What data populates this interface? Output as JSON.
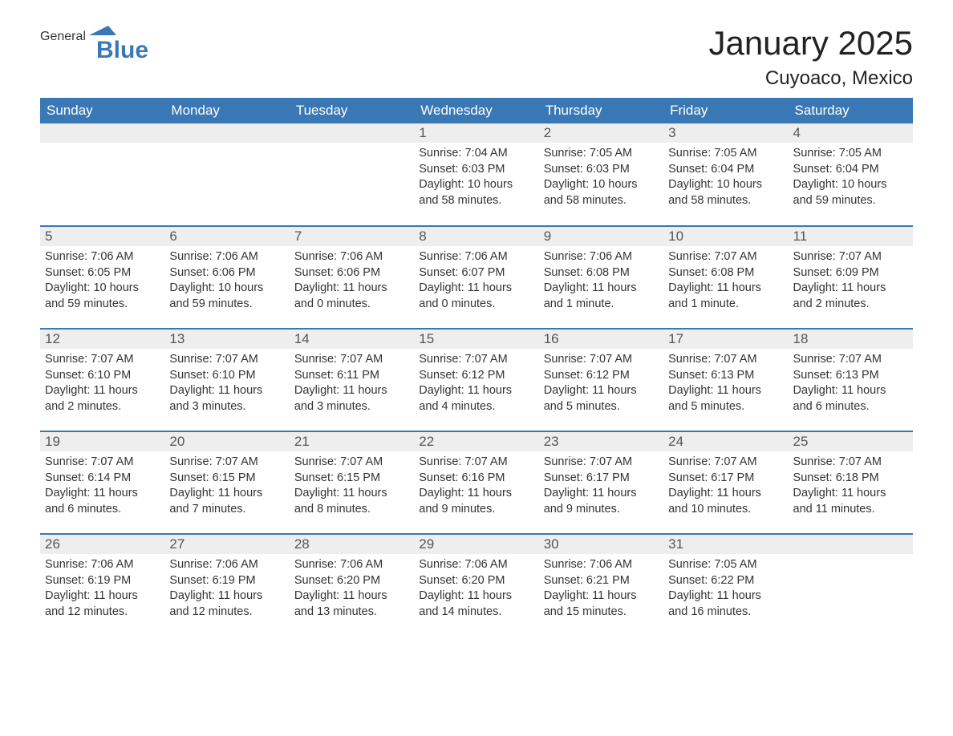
{
  "logo": {
    "text1": "General",
    "text2": "Blue",
    "shape_color": "#3a78b5"
  },
  "title": "January 2025",
  "subtitle": "Cuyoaco, Mexico",
  "colors": {
    "header_bg": "#3a78b5",
    "header_fg": "#ffffff",
    "daynum_bg": "#eeeeee",
    "body_bg": "#ffffff",
    "text": "#333333",
    "border": "#3a78b5"
  },
  "day_headers": [
    "Sunday",
    "Monday",
    "Tuesday",
    "Wednesday",
    "Thursday",
    "Friday",
    "Saturday"
  ],
  "weeks": [
    [
      null,
      null,
      null,
      {
        "n": "1",
        "sr": "Sunrise: 7:04 AM",
        "ss": "Sunset: 6:03 PM",
        "dl": "Daylight: 10 hours and 58 minutes."
      },
      {
        "n": "2",
        "sr": "Sunrise: 7:05 AM",
        "ss": "Sunset: 6:03 PM",
        "dl": "Daylight: 10 hours and 58 minutes."
      },
      {
        "n": "3",
        "sr": "Sunrise: 7:05 AM",
        "ss": "Sunset: 6:04 PM",
        "dl": "Daylight: 10 hours and 58 minutes."
      },
      {
        "n": "4",
        "sr": "Sunrise: 7:05 AM",
        "ss": "Sunset: 6:04 PM",
        "dl": "Daylight: 10 hours and 59 minutes."
      }
    ],
    [
      {
        "n": "5",
        "sr": "Sunrise: 7:06 AM",
        "ss": "Sunset: 6:05 PM",
        "dl": "Daylight: 10 hours and 59 minutes."
      },
      {
        "n": "6",
        "sr": "Sunrise: 7:06 AM",
        "ss": "Sunset: 6:06 PM",
        "dl": "Daylight: 10 hours and 59 minutes."
      },
      {
        "n": "7",
        "sr": "Sunrise: 7:06 AM",
        "ss": "Sunset: 6:06 PM",
        "dl": "Daylight: 11 hours and 0 minutes."
      },
      {
        "n": "8",
        "sr": "Sunrise: 7:06 AM",
        "ss": "Sunset: 6:07 PM",
        "dl": "Daylight: 11 hours and 0 minutes."
      },
      {
        "n": "9",
        "sr": "Sunrise: 7:06 AM",
        "ss": "Sunset: 6:08 PM",
        "dl": "Daylight: 11 hours and 1 minute."
      },
      {
        "n": "10",
        "sr": "Sunrise: 7:07 AM",
        "ss": "Sunset: 6:08 PM",
        "dl": "Daylight: 11 hours and 1 minute."
      },
      {
        "n": "11",
        "sr": "Sunrise: 7:07 AM",
        "ss": "Sunset: 6:09 PM",
        "dl": "Daylight: 11 hours and 2 minutes."
      }
    ],
    [
      {
        "n": "12",
        "sr": "Sunrise: 7:07 AM",
        "ss": "Sunset: 6:10 PM",
        "dl": "Daylight: 11 hours and 2 minutes."
      },
      {
        "n": "13",
        "sr": "Sunrise: 7:07 AM",
        "ss": "Sunset: 6:10 PM",
        "dl": "Daylight: 11 hours and 3 minutes."
      },
      {
        "n": "14",
        "sr": "Sunrise: 7:07 AM",
        "ss": "Sunset: 6:11 PM",
        "dl": "Daylight: 11 hours and 3 minutes."
      },
      {
        "n": "15",
        "sr": "Sunrise: 7:07 AM",
        "ss": "Sunset: 6:12 PM",
        "dl": "Daylight: 11 hours and 4 minutes."
      },
      {
        "n": "16",
        "sr": "Sunrise: 7:07 AM",
        "ss": "Sunset: 6:12 PM",
        "dl": "Daylight: 11 hours and 5 minutes."
      },
      {
        "n": "17",
        "sr": "Sunrise: 7:07 AM",
        "ss": "Sunset: 6:13 PM",
        "dl": "Daylight: 11 hours and 5 minutes."
      },
      {
        "n": "18",
        "sr": "Sunrise: 7:07 AM",
        "ss": "Sunset: 6:13 PM",
        "dl": "Daylight: 11 hours and 6 minutes."
      }
    ],
    [
      {
        "n": "19",
        "sr": "Sunrise: 7:07 AM",
        "ss": "Sunset: 6:14 PM",
        "dl": "Daylight: 11 hours and 6 minutes."
      },
      {
        "n": "20",
        "sr": "Sunrise: 7:07 AM",
        "ss": "Sunset: 6:15 PM",
        "dl": "Daylight: 11 hours and 7 minutes."
      },
      {
        "n": "21",
        "sr": "Sunrise: 7:07 AM",
        "ss": "Sunset: 6:15 PM",
        "dl": "Daylight: 11 hours and 8 minutes."
      },
      {
        "n": "22",
        "sr": "Sunrise: 7:07 AM",
        "ss": "Sunset: 6:16 PM",
        "dl": "Daylight: 11 hours and 9 minutes."
      },
      {
        "n": "23",
        "sr": "Sunrise: 7:07 AM",
        "ss": "Sunset: 6:17 PM",
        "dl": "Daylight: 11 hours and 9 minutes."
      },
      {
        "n": "24",
        "sr": "Sunrise: 7:07 AM",
        "ss": "Sunset: 6:17 PM",
        "dl": "Daylight: 11 hours and 10 minutes."
      },
      {
        "n": "25",
        "sr": "Sunrise: 7:07 AM",
        "ss": "Sunset: 6:18 PM",
        "dl": "Daylight: 11 hours and 11 minutes."
      }
    ],
    [
      {
        "n": "26",
        "sr": "Sunrise: 7:06 AM",
        "ss": "Sunset: 6:19 PM",
        "dl": "Daylight: 11 hours and 12 minutes."
      },
      {
        "n": "27",
        "sr": "Sunrise: 7:06 AM",
        "ss": "Sunset: 6:19 PM",
        "dl": "Daylight: 11 hours and 12 minutes."
      },
      {
        "n": "28",
        "sr": "Sunrise: 7:06 AM",
        "ss": "Sunset: 6:20 PM",
        "dl": "Daylight: 11 hours and 13 minutes."
      },
      {
        "n": "29",
        "sr": "Sunrise: 7:06 AM",
        "ss": "Sunset: 6:20 PM",
        "dl": "Daylight: 11 hours and 14 minutes."
      },
      {
        "n": "30",
        "sr": "Sunrise: 7:06 AM",
        "ss": "Sunset: 6:21 PM",
        "dl": "Daylight: 11 hours and 15 minutes."
      },
      {
        "n": "31",
        "sr": "Sunrise: 7:05 AM",
        "ss": "Sunset: 6:22 PM",
        "dl": "Daylight: 11 hours and 16 minutes."
      },
      null
    ]
  ]
}
